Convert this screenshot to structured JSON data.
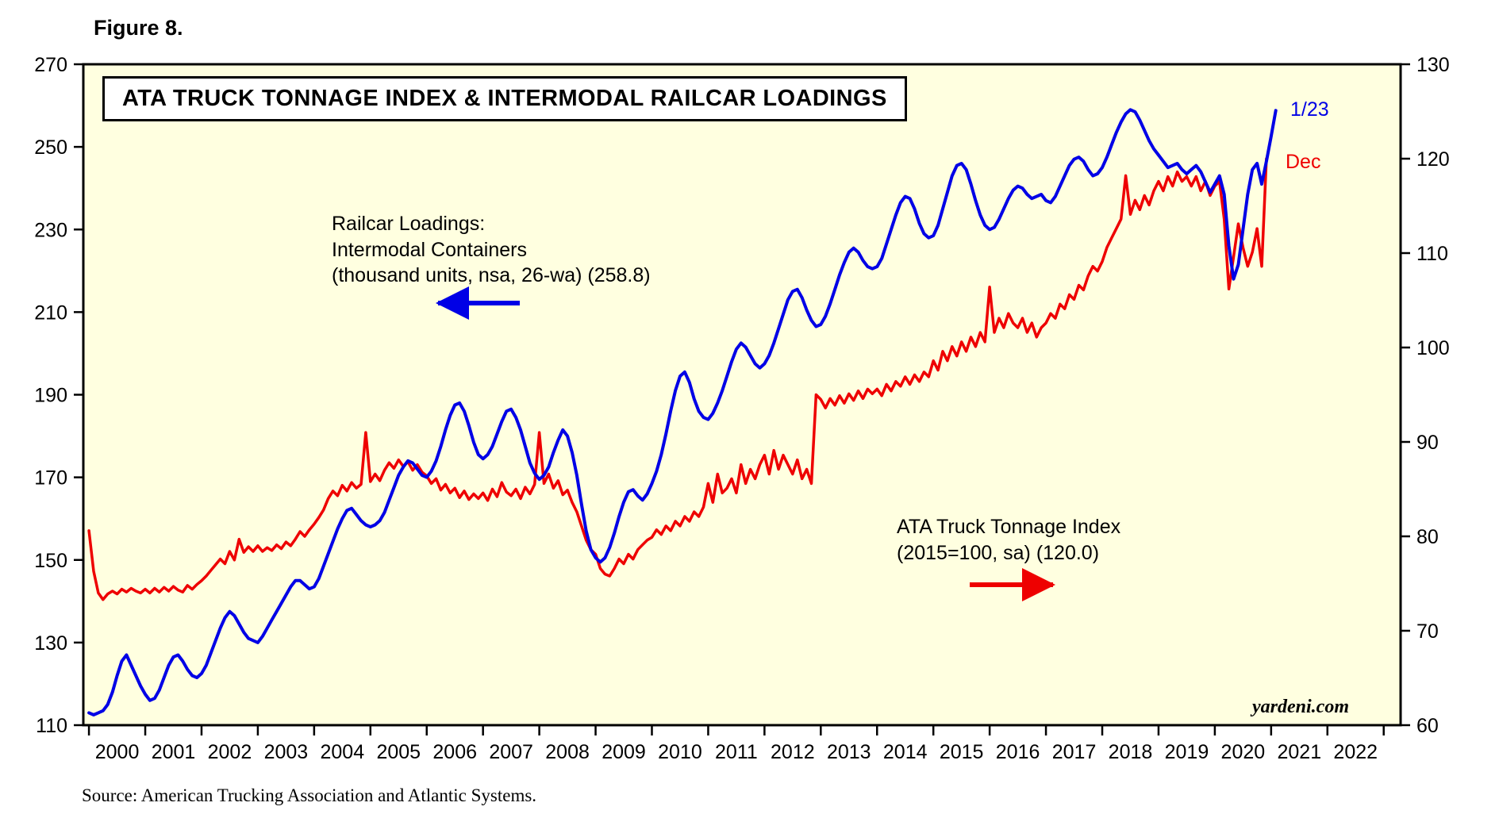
{
  "figure_label": "Figure 8.",
  "title": "ATA TRUCK TONNAGE INDEX & INTERMODAL RAILCAR LOADINGS",
  "source": "Source: American Trucking Association and Atlantic Systems.",
  "watermark": "yardeni.com",
  "annotations": {
    "blue_label_line1": "Railcar Loadings:",
    "blue_label_line2": "Intermodal Containers",
    "blue_label_line3": "(thousand units, nsa, 26-wa) (258.8)",
    "red_label_line1": "ATA Truck Tonnage Index",
    "red_label_line2": "(2015=100, sa) (120.0)",
    "blue_endpoint_label": "1/23",
    "red_endpoint_label": "Dec"
  },
  "colors": {
    "blue": "#0000e6",
    "red": "#ee0000",
    "plot_bg": "#ffffe0",
    "axis": "#000000"
  },
  "chart_data": {
    "type": "line",
    "title": "ATA TRUCK TONNAGE INDEX & INTERMODAL RAILCAR LOADINGS",
    "grid": false,
    "legend_position": "inline-annotations",
    "left_axis": {
      "label": "Railcar Loadings: Intermodal Containers (thousand units, nsa, 26-wa)",
      "range": [
        110,
        270
      ],
      "ticks": [
        270,
        250,
        230,
        210,
        190,
        170,
        150,
        130,
        110
      ]
    },
    "right_axis": {
      "label": "ATA Truck Tonnage Index (2015=100, sa)",
      "range": [
        60,
        130
      ],
      "ticks": [
        130,
        120,
        110,
        100,
        90,
        80,
        70,
        60
      ]
    },
    "x_axis": {
      "range": [
        1999.9,
        2023.3
      ],
      "year_labels": [
        "2000",
        "2001",
        "2002",
        "2003",
        "2004",
        "2005",
        "2006",
        "2007",
        "2008",
        "2009",
        "2010",
        "2011",
        "2012",
        "2013",
        "2014",
        "2015",
        "2016",
        "2017",
        "2018",
        "2019",
        "2020",
        "2021",
        "2022"
      ]
    },
    "series": [
      {
        "name": "ATA Truck Tonnage Index (2015=100, sa)",
        "axis": "right",
        "color": "#ee0000",
        "stroke_width": 3.5,
        "latest_label": "Dec",
        "latest_value": 120.0,
        "x_start": 2000.0,
        "x_step": 0.0833333,
        "values": [
          80.6,
          76.3,
          74.0,
          73.3,
          73.9,
          74.2,
          73.9,
          74.4,
          74.1,
          74.5,
          74.2,
          74.0,
          74.4,
          74.0,
          74.5,
          74.1,
          74.6,
          74.2,
          74.7,
          74.3,
          74.1,
          74.8,
          74.4,
          74.9,
          75.3,
          75.8,
          76.4,
          77.0,
          77.6,
          77.1,
          78.4,
          77.5,
          79.7,
          78.3,
          78.9,
          78.4,
          79.0,
          78.4,
          78.8,
          78.5,
          79.1,
          78.7,
          79.4,
          79.0,
          79.7,
          80.5,
          80.0,
          80.7,
          81.3,
          82.0,
          82.8,
          84.0,
          84.8,
          84.3,
          85.4,
          84.8,
          85.7,
          85.1,
          85.5,
          91.0,
          85.8,
          86.6,
          85.9,
          87.0,
          87.8,
          87.2,
          88.1,
          87.4,
          87.9,
          87.0,
          87.6,
          86.8,
          86.4,
          85.6,
          86.1,
          84.9,
          85.5,
          84.6,
          85.1,
          84.1,
          84.8,
          83.9,
          84.5,
          84.0,
          84.6,
          83.8,
          85.0,
          84.2,
          85.7,
          84.7,
          84.3,
          85.0,
          84.0,
          85.2,
          84.5,
          85.5,
          91.0,
          85.6,
          86.6,
          85.1,
          85.9,
          84.4,
          84.9,
          83.6,
          82.6,
          81.1,
          79.6,
          78.6,
          78.1,
          76.6,
          76.0,
          75.8,
          76.6,
          77.6,
          77.1,
          78.1,
          77.6,
          78.6,
          79.1,
          79.6,
          79.9,
          80.7,
          80.2,
          81.1,
          80.6,
          81.6,
          81.1,
          82.1,
          81.6,
          82.6,
          82.1,
          83.1,
          85.6,
          83.6,
          86.6,
          84.6,
          85.1,
          86.1,
          84.6,
          87.6,
          85.6,
          87.1,
          86.1,
          87.6,
          88.6,
          86.6,
          89.1,
          87.1,
          88.6,
          87.6,
          86.6,
          88.1,
          86.1,
          87.1,
          85.6,
          95.0,
          94.5,
          93.6,
          94.6,
          93.9,
          94.9,
          94.1,
          95.1,
          94.4,
          95.4,
          94.6,
          95.6,
          95.1,
          95.6,
          94.9,
          96.1,
          95.4,
          96.4,
          95.9,
          96.9,
          96.1,
          97.1,
          96.4,
          97.4,
          96.9,
          98.6,
          97.6,
          99.6,
          98.6,
          100.1,
          99.1,
          100.6,
          99.6,
          101.1,
          100.1,
          101.6,
          100.6,
          106.4,
          101.6,
          103.1,
          102.1,
          103.6,
          102.6,
          102.1,
          103.1,
          101.6,
          102.6,
          101.1,
          102.1,
          102.6,
          103.6,
          103.1,
          104.6,
          104.1,
          105.6,
          105.1,
          106.6,
          106.1,
          107.6,
          108.6,
          108.1,
          109.1,
          110.6,
          111.6,
          112.6,
          113.6,
          118.2,
          114.1,
          115.6,
          114.6,
          116.1,
          115.1,
          116.6,
          117.6,
          116.6,
          118.1,
          117.1,
          118.6,
          117.6,
          118.1,
          117.1,
          118.1,
          116.6,
          117.6,
          116.1,
          117.1,
          117.6,
          113.6,
          106.2,
          109.6,
          113.1,
          110.6,
          108.6,
          110.1,
          112.6,
          108.6,
          120.0
        ]
      },
      {
        "name": "Railcar Loadings: Intermodal Containers (thousand units, nsa, 26-wa)",
        "axis": "left",
        "color": "#0000e6",
        "stroke_width": 4,
        "latest_label": "1/23",
        "latest_value": 258.8,
        "x_start": 2000.0,
        "x_step": 0.0833333,
        "values": [
          113,
          112.5,
          113,
          113.5,
          115,
          118,
          122,
          125.5,
          127,
          124.5,
          122,
          119.5,
          117.5,
          116,
          116.5,
          118.5,
          121.5,
          124.5,
          126.5,
          127,
          125.5,
          123.5,
          122,
          121.5,
          122.5,
          124.5,
          127.5,
          130.5,
          133.5,
          136,
          137.5,
          136.5,
          134.5,
          132.5,
          131,
          130.5,
          130,
          131.5,
          133.5,
          135.5,
          137.5,
          139.5,
          141.5,
          143.5,
          145,
          145,
          144,
          143,
          143.5,
          145.5,
          148.5,
          151.5,
          154.5,
          157.5,
          160,
          162,
          162.5,
          161,
          159.5,
          158.5,
          158,
          158.5,
          159.5,
          161.5,
          164.5,
          167.5,
          170.5,
          172.5,
          174,
          173.5,
          172,
          170.5,
          170,
          171.5,
          174,
          177.5,
          181.5,
          185,
          187.5,
          188,
          186,
          182.5,
          178.5,
          175.5,
          174.5,
          175.5,
          177.5,
          180.5,
          183.5,
          186,
          186.5,
          184.5,
          181.5,
          177.5,
          173.5,
          171,
          169.5,
          170.5,
          172.5,
          176,
          179,
          181.5,
          180,
          176,
          170.5,
          163.5,
          157,
          152.5,
          150.5,
          149.5,
          150.5,
          153,
          156.5,
          160.5,
          164,
          166.5,
          167,
          165.5,
          164.5,
          166,
          168.5,
          171.5,
          175.5,
          180.5,
          186,
          191,
          194.5,
          195.5,
          193,
          189,
          186,
          184.5,
          184,
          185.5,
          188,
          191,
          194.5,
          198,
          201,
          202.5,
          201.5,
          199.5,
          197.5,
          196.5,
          197.5,
          199.5,
          202.5,
          206,
          209.5,
          213,
          215,
          215.5,
          213.5,
          210.5,
          208,
          206.5,
          207,
          209,
          212,
          215.5,
          219,
          222,
          224.5,
          225.5,
          224.5,
          222.5,
          221,
          220.5,
          221,
          223,
          226.5,
          230,
          233.5,
          236.5,
          238,
          237.5,
          235,
          231.5,
          229,
          228,
          228.5,
          231,
          235,
          239,
          243,
          245.5,
          246,
          244.5,
          241,
          237,
          233.5,
          231,
          230,
          230.5,
          232.5,
          235,
          237.5,
          239.5,
          240.5,
          240,
          238.5,
          237.5,
          238,
          238.5,
          237,
          236.5,
          238,
          240.5,
          243,
          245.5,
          247,
          247.5,
          246.5,
          244.5,
          243,
          243.5,
          245,
          247.5,
          250.5,
          253.5,
          256,
          258,
          259,
          258.5,
          256.5,
          254,
          251.5,
          249.5,
          248,
          246.5,
          245,
          245.5,
          246,
          244.5,
          243.5,
          244.5,
          245.5,
          244,
          241.5,
          239,
          241,
          243,
          238.5,
          226,
          218,
          221.5,
          230,
          238.5,
          244.5,
          246,
          241,
          246.5,
          252.5,
          258.8
        ]
      }
    ]
  }
}
